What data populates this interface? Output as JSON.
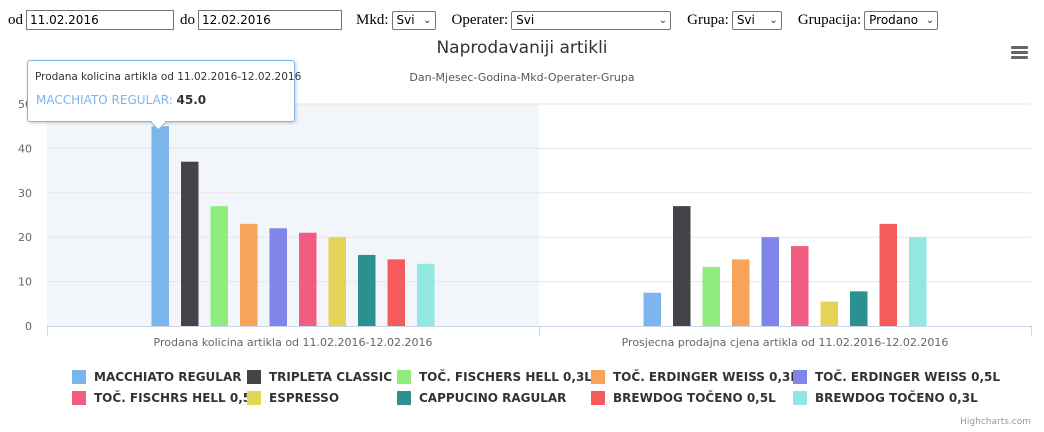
{
  "filters": {
    "od_label": "od",
    "od_value": "11.02.2016",
    "do_label": "do",
    "do_value": "12.02.2016",
    "mkd_label": "Mkd:",
    "mkd_value": "Svi",
    "operater_label": "Operater:",
    "operater_value": "Svi",
    "grupa_label": "Grupa:",
    "grupa_value": "Svi",
    "grupacija_label": "Grupacija:",
    "grupacija_value": "Prodano"
  },
  "tooltip": {
    "header": "Prodana kolicina artikla od 11.02.2016-12.02.2016",
    "series": "MACCHIATO REGULAR",
    "value": "45.0"
  },
  "credits": "Highcharts.com",
  "chart_data": {
    "type": "bar",
    "title": "Naprodavaniji artikli",
    "subtitle": "Dan-Mjesec-Godina-Mkd-Operater-Grupa",
    "categories": [
      "Prodana kolicina artikla od 11.02.2016-12.02.2016",
      "Prosjecna prodajna cjena artikla od 11.02.2016-12.02.2016"
    ],
    "ylim": [
      0,
      50
    ],
    "yticks": [
      0,
      10,
      20,
      30,
      40,
      50
    ],
    "grid": true,
    "legend_position": "bottom",
    "highlighted_category": 0,
    "series": [
      {
        "name": "MACCHIATO REGULAR",
        "color": "#7cb5ec",
        "values": [
          45,
          7.5
        ]
      },
      {
        "name": "TRIPLETA CLASSIC",
        "color": "#434348",
        "values": [
          37,
          27
        ]
      },
      {
        "name": "TOČ. FISCHERS HELL 0,3L",
        "color": "#90ed7d",
        "values": [
          27,
          13.3
        ]
      },
      {
        "name": "TOČ. ERDINGER WEISS 0,3L",
        "color": "#f7a35c",
        "values": [
          23,
          15
        ]
      },
      {
        "name": "TOČ. ERDINGER WEISS 0,5L",
        "color": "#8085e9",
        "values": [
          22,
          20
        ]
      },
      {
        "name": "TOČ. FISCHRS HELL 0,5L",
        "color": "#f15c80",
        "values": [
          21,
          18
        ]
      },
      {
        "name": "ESPRESSO",
        "color": "#e4d354",
        "values": [
          20,
          5.5
        ]
      },
      {
        "name": "CAPPUCINO RAGULAR",
        "color": "#2b908f",
        "values": [
          16,
          7.8
        ]
      },
      {
        "name": "BREWDOG TOČENO 0,5L",
        "color": "#f45b5b",
        "values": [
          15,
          23
        ]
      },
      {
        "name": "BREWDOG TOČENO 0,3L",
        "color": "#91e8e1",
        "values": [
          14,
          20
        ]
      }
    ]
  }
}
